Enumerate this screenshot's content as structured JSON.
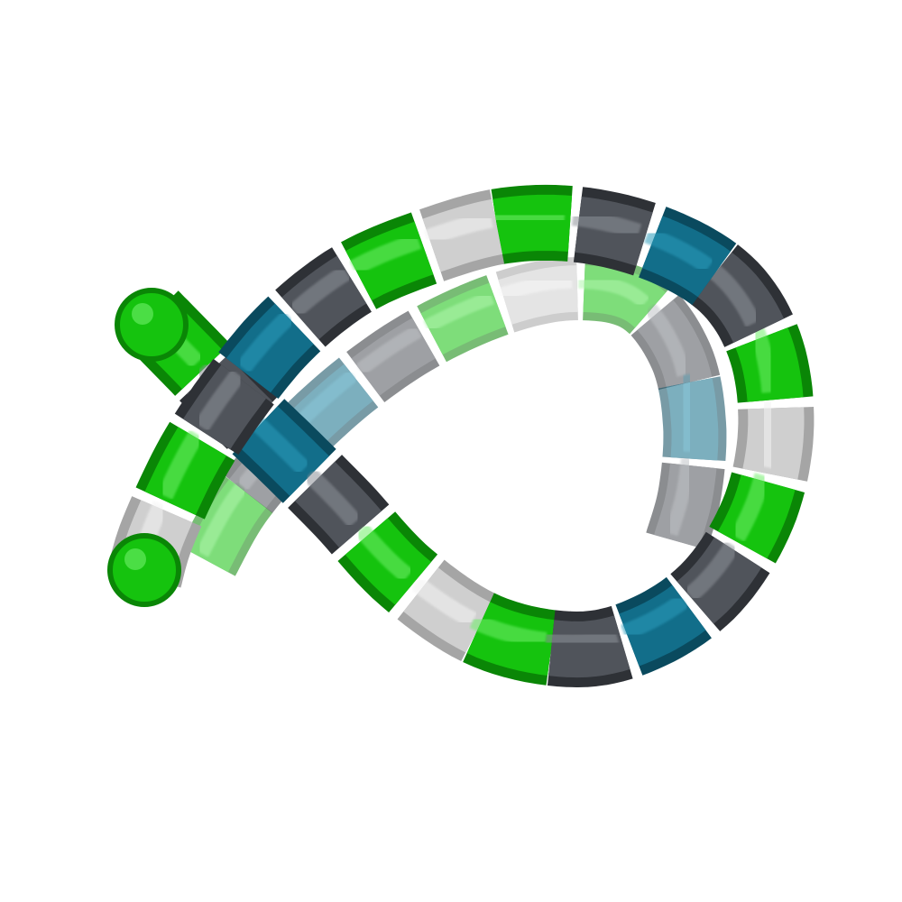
{
  "scene": {
    "subject": "",
    "background_color": "#ffffff",
    "palette": {
      "green": "#15c30e",
      "green_light": "#6ff06a",
      "green_dark": "#0a8606",
      "gray": "#50545b",
      "gray_light": "#8d9299",
      "gray_dark": "#2e3136",
      "white": "#cfcfcf",
      "white_light": "#f4f4f4",
      "white_dark": "#a5a5a5",
      "teal": "#126e8a",
      "teal_light": "#2a9cbc",
      "teal_dark": "#0a4a5e"
    },
    "segment_color_sequence": [
      "green",
      "gray",
      "teal",
      "gray",
      "green",
      "white",
      "green",
      "gray",
      "teal",
      "gray",
      "green",
      "white",
      "green",
      "gray",
      "teal",
      "gray",
      "green",
      "white"
    ]
  }
}
